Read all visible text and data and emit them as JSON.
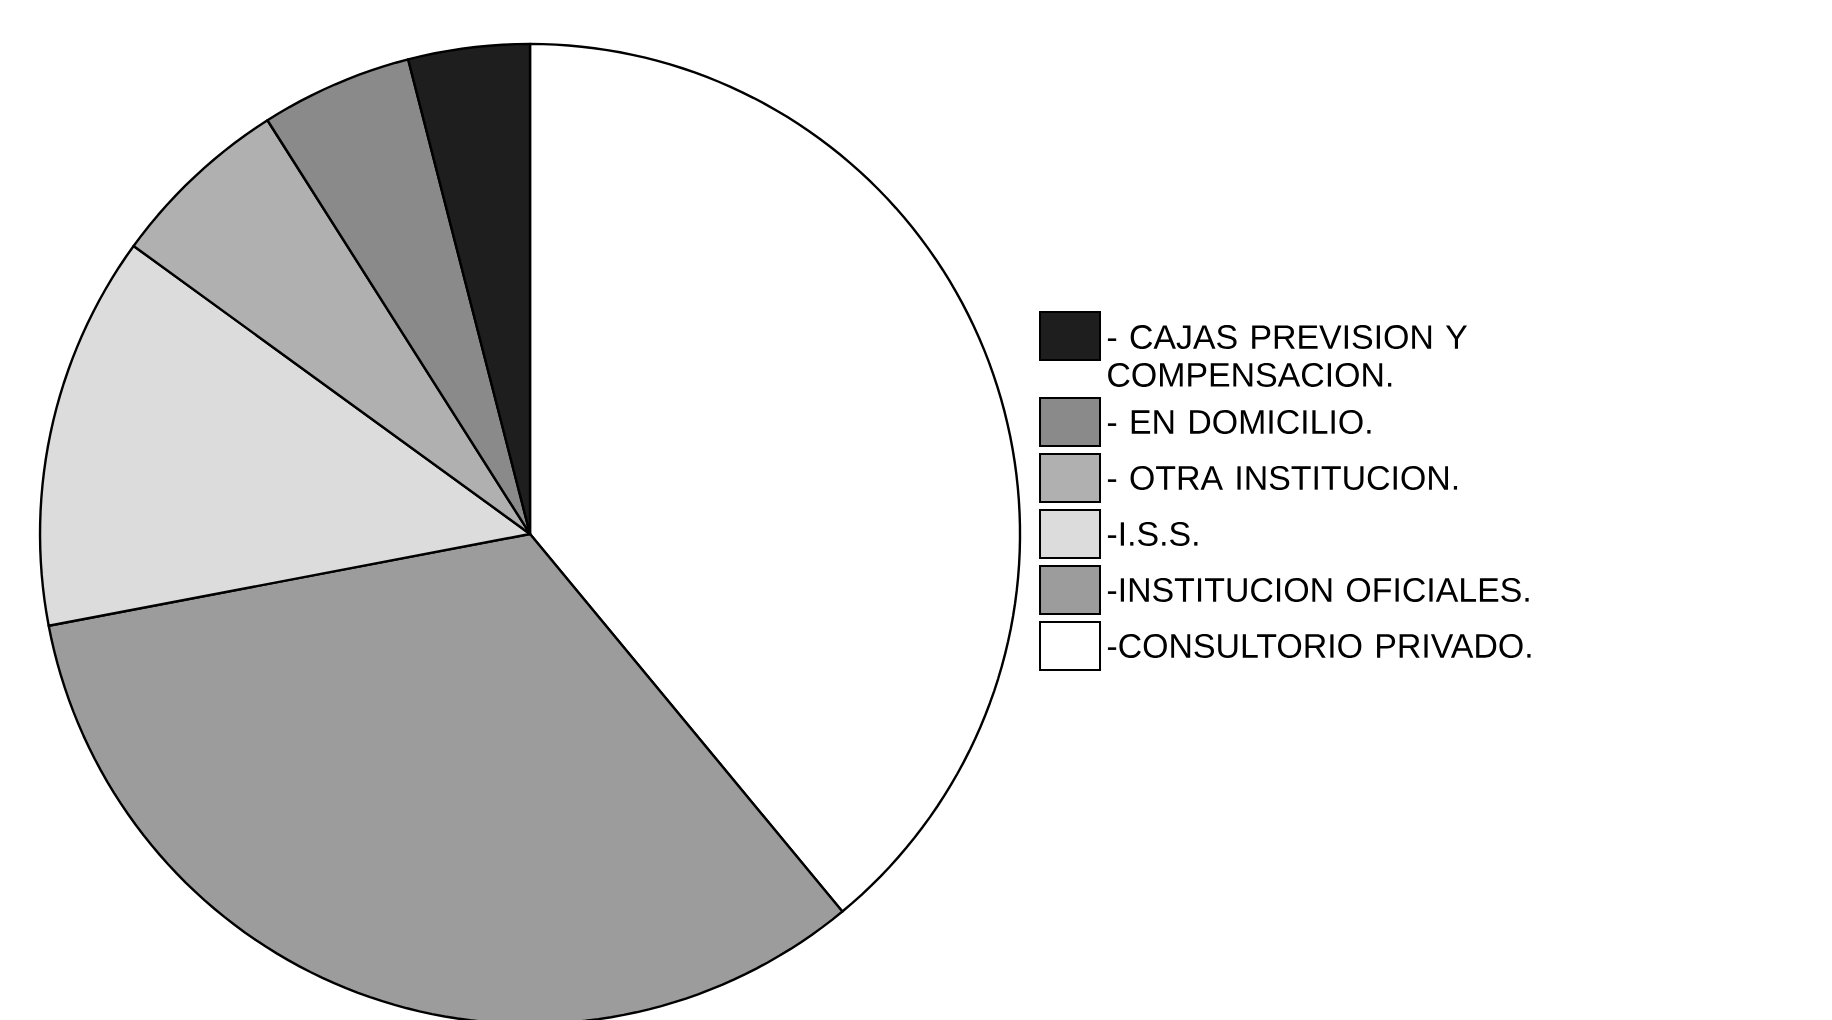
{
  "chart_data": {
    "type": "pie",
    "categories": [
      "- CAJAS PREVISION Y COMPENSACION.",
      "- EN DOMICILIO.",
      "- OTRA INSTITUCION.",
      "-I.S.S.",
      "-INSTITUCION OFICIALES.",
      "-CONSULTORIO PRIVADO."
    ],
    "values": [
      4,
      5,
      6,
      13,
      33,
      39
    ],
    "colors": [
      "#1e1e1e",
      "#8a8a8a",
      "#b0b0b0",
      "#dcdcdc",
      "#9c9c9c",
      "#ffffff"
    ],
    "legend": "right"
  }
}
